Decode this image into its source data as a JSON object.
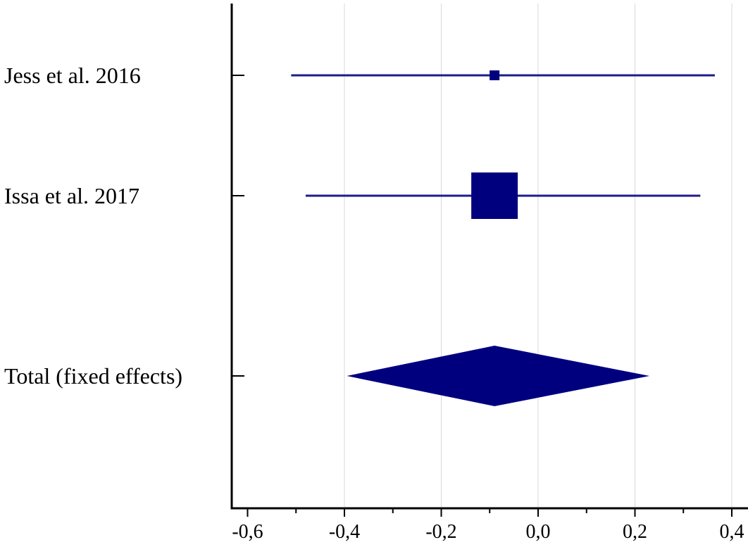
{
  "chart_data": {
    "type": "forest",
    "title": "",
    "xlabel": "",
    "ylabel": "",
    "xlim": [
      -0.62,
      0.42
    ],
    "x_ticks": [
      -0.6,
      -0.4,
      -0.2,
      0.0,
      0.2,
      0.4
    ],
    "x_tick_labels": [
      "-0,6",
      "-0,4",
      "-0,2",
      "0,0",
      "0,2",
      "0,4"
    ],
    "x_minor_ticks": [
      -0.5,
      -0.3,
      -0.1,
      0.1,
      0.3
    ],
    "grid": true,
    "studies": [
      {
        "label": "Jess et al. 2016",
        "estimate": -0.09,
        "ci_low": -0.51,
        "ci_high": 0.365,
        "weight": "small"
      },
      {
        "label": "Issa et al. 2017",
        "estimate": -0.09,
        "ci_low": -0.48,
        "ci_high": 0.335,
        "weight": "large"
      }
    ],
    "pooled": {
      "label": "Total (fixed effects)",
      "estimate": -0.09,
      "ci_low": -0.395,
      "ci_high": 0.23
    },
    "colors": {
      "marker": "#00007f",
      "ci_line": "#1c1c8c",
      "grid": "#d8d8d8",
      "axis": "#000000"
    }
  }
}
